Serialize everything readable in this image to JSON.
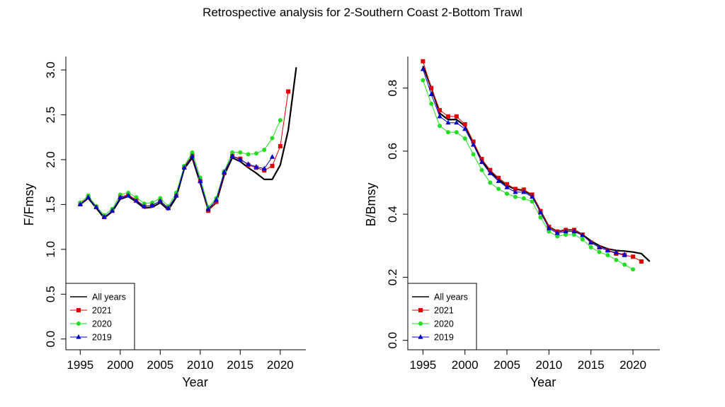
{
  "title": "Retrospective analysis for 2-Southern Coast 2-Bottom Trawl",
  "chart_data": [
    {
      "type": "line",
      "xlabel": "Year",
      "ylabel": "F/Fmsy",
      "xlim": [
        1993.2,
        2023.2
      ],
      "ylim": [
        -0.12,
        3.15
      ],
      "xticks": [
        1995,
        2000,
        2005,
        2010,
        2015,
        2020
      ],
      "yticks": [
        0.0,
        0.5,
        1.0,
        1.5,
        2.0,
        2.5,
        3.0
      ],
      "ytick_labels": [
        "0.0",
        "0.5",
        "1.0",
        "1.5",
        "2.0",
        "2.5",
        "3.0"
      ],
      "legend_position": "bottom-left",
      "series": [
        {
          "name": "All years",
          "color": "#000000",
          "marker": "none",
          "width": 2.2,
          "x": [
            1995,
            1996,
            1997,
            1998,
            1999,
            2000,
            2001,
            2002,
            2003,
            2004,
            2005,
            2006,
            2007,
            2008,
            2009,
            2010,
            2011,
            2012,
            2013,
            2014,
            2015,
            2016,
            2017,
            2018,
            2019,
            2020,
            2021,
            2022
          ],
          "y": [
            1.5,
            1.57,
            1.46,
            1.35,
            1.42,
            1.56,
            1.59,
            1.53,
            1.46,
            1.47,
            1.52,
            1.44,
            1.58,
            1.9,
            2.02,
            1.74,
            1.44,
            1.52,
            1.83,
            2.02,
            1.98,
            1.91,
            1.85,
            1.78,
            1.78,
            1.94,
            2.33,
            3.03
          ]
        },
        {
          "name": "2021",
          "color": "#dd0000",
          "marker": "square",
          "width": 1,
          "x": [
            1995,
            1996,
            1997,
            1998,
            1999,
            2000,
            2001,
            2002,
            2003,
            2004,
            2005,
            2006,
            2007,
            2008,
            2009,
            2010,
            2011,
            2012,
            2013,
            2014,
            2015,
            2016,
            2017,
            2018,
            2019,
            2020,
            2021
          ],
          "y": [
            1.51,
            1.58,
            1.47,
            1.36,
            1.43,
            1.58,
            1.61,
            1.55,
            1.48,
            1.49,
            1.54,
            1.46,
            1.6,
            1.92,
            2.05,
            1.76,
            1.43,
            1.53,
            1.85,
            2.04,
            2.01,
            1.94,
            1.91,
            1.88,
            1.93,
            2.15,
            2.76
          ]
        },
        {
          "name": "2020",
          "color": "#22dd22",
          "marker": "circle",
          "width": 1,
          "x": [
            1995,
            1996,
            1997,
            1998,
            1999,
            2000,
            2001,
            2002,
            2003,
            2004,
            2005,
            2006,
            2007,
            2008,
            2009,
            2010,
            2011,
            2012,
            2013,
            2014,
            2015,
            2016,
            2017,
            2018,
            2019,
            2020
          ],
          "y": [
            1.52,
            1.6,
            1.48,
            1.38,
            1.45,
            1.61,
            1.63,
            1.58,
            1.51,
            1.52,
            1.57,
            1.48,
            1.63,
            1.93,
            2.08,
            1.8,
            1.47,
            1.57,
            1.87,
            2.08,
            2.08,
            2.06,
            2.07,
            2.11,
            2.24,
            2.44
          ]
        },
        {
          "name": "2019",
          "color": "#0000cc",
          "marker": "triangle",
          "width": 1,
          "x": [
            1995,
            1996,
            1997,
            1998,
            1999,
            2000,
            2001,
            2002,
            2003,
            2004,
            2005,
            2006,
            2007,
            2008,
            2009,
            2010,
            2011,
            2012,
            2013,
            2014,
            2015,
            2016,
            2017,
            2018,
            2019
          ],
          "y": [
            1.5,
            1.58,
            1.47,
            1.36,
            1.43,
            1.58,
            1.6,
            1.54,
            1.48,
            1.49,
            1.54,
            1.46,
            1.6,
            1.91,
            2.04,
            1.76,
            1.45,
            1.55,
            1.86,
            2.04,
            2.0,
            1.95,
            1.92,
            1.9,
            2.03
          ]
        }
      ]
    },
    {
      "type": "line",
      "xlabel": "Year",
      "ylabel": "B/Bmsy",
      "xlim": [
        1993.2,
        2023.2
      ],
      "ylim": [
        -0.03,
        0.9
      ],
      "xticks": [
        1995,
        2000,
        2005,
        2010,
        2015,
        2020
      ],
      "yticks": [
        0.0,
        0.2,
        0.4,
        0.6,
        0.8
      ],
      "ytick_labels": [
        "0.0",
        "0.2",
        "0.4",
        "0.6",
        "0.8"
      ],
      "legend_position": "bottom-left",
      "series": [
        {
          "name": "All years",
          "color": "#000000",
          "marker": "none",
          "width": 2.2,
          "x": [
            1995,
            1996,
            1997,
            1998,
            1999,
            2000,
            2001,
            2002,
            2003,
            2004,
            2005,
            2006,
            2007,
            2008,
            2009,
            2010,
            2011,
            2012,
            2013,
            2014,
            2015,
            2016,
            2017,
            2018,
            2019,
            2020,
            2021,
            2022
          ],
          "y": [
            0.87,
            0.8,
            0.72,
            0.7,
            0.7,
            0.68,
            0.625,
            0.57,
            0.535,
            0.51,
            0.49,
            0.48,
            0.475,
            0.46,
            0.41,
            0.36,
            0.345,
            0.35,
            0.35,
            0.335,
            0.315,
            0.3,
            0.29,
            0.285,
            0.283,
            0.28,
            0.275,
            0.25
          ]
        },
        {
          "name": "2021",
          "color": "#dd0000",
          "marker": "square",
          "width": 1,
          "x": [
            1995,
            1996,
            1997,
            1998,
            1999,
            2000,
            2001,
            2002,
            2003,
            2004,
            2005,
            2006,
            2007,
            2008,
            2009,
            2010,
            2011,
            2012,
            2013,
            2014,
            2015,
            2016,
            2017,
            2018,
            2019,
            2020,
            2021
          ],
          "y": [
            0.885,
            0.8,
            0.73,
            0.71,
            0.71,
            0.685,
            0.63,
            0.575,
            0.54,
            0.515,
            0.495,
            0.48,
            0.478,
            0.462,
            0.41,
            0.36,
            0.345,
            0.35,
            0.35,
            0.335,
            0.31,
            0.295,
            0.285,
            0.275,
            0.27,
            0.265,
            0.25
          ]
        },
        {
          "name": "2020",
          "color": "#22dd22",
          "marker": "circle",
          "width": 1,
          "x": [
            1995,
            1996,
            1997,
            1998,
            1999,
            2000,
            2001,
            2002,
            2003,
            2004,
            2005,
            2006,
            2007,
            2008,
            2009,
            2010,
            2011,
            2012,
            2013,
            2014,
            2015,
            2016,
            2017,
            2018,
            2019,
            2020
          ],
          "y": [
            0.825,
            0.75,
            0.68,
            0.66,
            0.66,
            0.64,
            0.59,
            0.54,
            0.5,
            0.48,
            0.465,
            0.455,
            0.45,
            0.44,
            0.39,
            0.345,
            0.33,
            0.335,
            0.335,
            0.32,
            0.295,
            0.28,
            0.27,
            0.255,
            0.24,
            0.225
          ]
        },
        {
          "name": "2019",
          "color": "#0000cc",
          "marker": "triangle",
          "width": 1,
          "x": [
            1995,
            1996,
            1997,
            1998,
            1999,
            2000,
            2001,
            2002,
            2003,
            2004,
            2005,
            2006,
            2007,
            2008,
            2009,
            2010,
            2011,
            2012,
            2013,
            2014,
            2015,
            2016,
            2017,
            2018,
            2019
          ],
          "y": [
            0.86,
            0.78,
            0.71,
            0.69,
            0.69,
            0.67,
            0.62,
            0.565,
            0.53,
            0.505,
            0.485,
            0.47,
            0.47,
            0.455,
            0.405,
            0.355,
            0.34,
            0.345,
            0.345,
            0.333,
            0.31,
            0.295,
            0.285,
            0.278,
            0.272
          ]
        }
      ]
    }
  ]
}
